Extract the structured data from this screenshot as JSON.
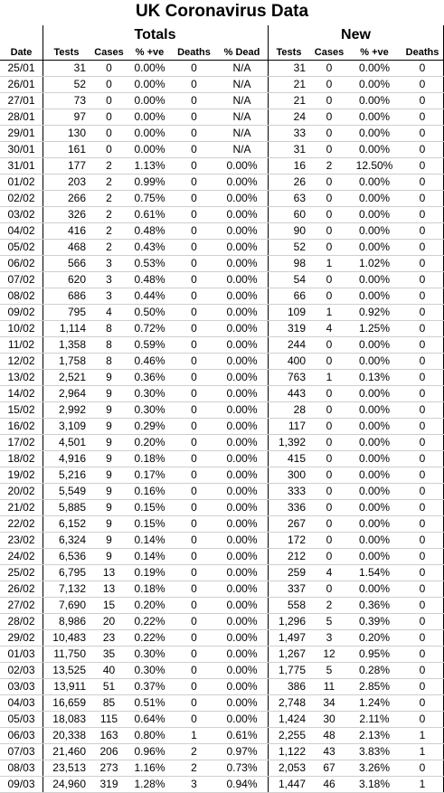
{
  "title": "UK Coronavirus Data",
  "groups": {
    "totals": "Totals",
    "new": "New"
  },
  "headers": [
    "Date",
    "Tests",
    "Cases",
    "% +ve",
    "Deaths",
    "% Dead",
    "Tests",
    "Cases",
    "% +ve",
    "Deaths"
  ],
  "rows": [
    [
      "25/01",
      "31",
      "0",
      "0.00%",
      "0",
      "N/A",
      "31",
      "0",
      "0.00%",
      "0"
    ],
    [
      "26/01",
      "52",
      "0",
      "0.00%",
      "0",
      "N/A",
      "21",
      "0",
      "0.00%",
      "0"
    ],
    [
      "27/01",
      "73",
      "0",
      "0.00%",
      "0",
      "N/A",
      "21",
      "0",
      "0.00%",
      "0"
    ],
    [
      "28/01",
      "97",
      "0",
      "0.00%",
      "0",
      "N/A",
      "24",
      "0",
      "0.00%",
      "0"
    ],
    [
      "29/01",
      "130",
      "0",
      "0.00%",
      "0",
      "N/A",
      "33",
      "0",
      "0.00%",
      "0"
    ],
    [
      "30/01",
      "161",
      "0",
      "0.00%",
      "0",
      "N/A",
      "31",
      "0",
      "0.00%",
      "0"
    ],
    [
      "31/01",
      "177",
      "2",
      "1.13%",
      "0",
      "0.00%",
      "16",
      "2",
      "12.50%",
      "0"
    ],
    [
      "01/02",
      "203",
      "2",
      "0.99%",
      "0",
      "0.00%",
      "26",
      "0",
      "0.00%",
      "0"
    ],
    [
      "02/02",
      "266",
      "2",
      "0.75%",
      "0",
      "0.00%",
      "63",
      "0",
      "0.00%",
      "0"
    ],
    [
      "03/02",
      "326",
      "2",
      "0.61%",
      "0",
      "0.00%",
      "60",
      "0",
      "0.00%",
      "0"
    ],
    [
      "04/02",
      "416",
      "2",
      "0.48%",
      "0",
      "0.00%",
      "90",
      "0",
      "0.00%",
      "0"
    ],
    [
      "05/02",
      "468",
      "2",
      "0.43%",
      "0",
      "0.00%",
      "52",
      "0",
      "0.00%",
      "0"
    ],
    [
      "06/02",
      "566",
      "3",
      "0.53%",
      "0",
      "0.00%",
      "98",
      "1",
      "1.02%",
      "0"
    ],
    [
      "07/02",
      "620",
      "3",
      "0.48%",
      "0",
      "0.00%",
      "54",
      "0",
      "0.00%",
      "0"
    ],
    [
      "08/02",
      "686",
      "3",
      "0.44%",
      "0",
      "0.00%",
      "66",
      "0",
      "0.00%",
      "0"
    ],
    [
      "09/02",
      "795",
      "4",
      "0.50%",
      "0",
      "0.00%",
      "109",
      "1",
      "0.92%",
      "0"
    ],
    [
      "10/02",
      "1,114",
      "8",
      "0.72%",
      "0",
      "0.00%",
      "319",
      "4",
      "1.25%",
      "0"
    ],
    [
      "11/02",
      "1,358",
      "8",
      "0.59%",
      "0",
      "0.00%",
      "244",
      "0",
      "0.00%",
      "0"
    ],
    [
      "12/02",
      "1,758",
      "8",
      "0.46%",
      "0",
      "0.00%",
      "400",
      "0",
      "0.00%",
      "0"
    ],
    [
      "13/02",
      "2,521",
      "9",
      "0.36%",
      "0",
      "0.00%",
      "763",
      "1",
      "0.13%",
      "0"
    ],
    [
      "14/02",
      "2,964",
      "9",
      "0.30%",
      "0",
      "0.00%",
      "443",
      "0",
      "0.00%",
      "0"
    ],
    [
      "15/02",
      "2,992",
      "9",
      "0.30%",
      "0",
      "0.00%",
      "28",
      "0",
      "0.00%",
      "0"
    ],
    [
      "16/02",
      "3,109",
      "9",
      "0.29%",
      "0",
      "0.00%",
      "117",
      "0",
      "0.00%",
      "0"
    ],
    [
      "17/02",
      "4,501",
      "9",
      "0.20%",
      "0",
      "0.00%",
      "1,392",
      "0",
      "0.00%",
      "0"
    ],
    [
      "18/02",
      "4,916",
      "9",
      "0.18%",
      "0",
      "0.00%",
      "415",
      "0",
      "0.00%",
      "0"
    ],
    [
      "19/02",
      "5,216",
      "9",
      "0.17%",
      "0",
      "0.00%",
      "300",
      "0",
      "0.00%",
      "0"
    ],
    [
      "20/02",
      "5,549",
      "9",
      "0.16%",
      "0",
      "0.00%",
      "333",
      "0",
      "0.00%",
      "0"
    ],
    [
      "21/02",
      "5,885",
      "9",
      "0.15%",
      "0",
      "0.00%",
      "336",
      "0",
      "0.00%",
      "0"
    ],
    [
      "22/02",
      "6,152",
      "9",
      "0.15%",
      "0",
      "0.00%",
      "267",
      "0",
      "0.00%",
      "0"
    ],
    [
      "23/02",
      "6,324",
      "9",
      "0.14%",
      "0",
      "0.00%",
      "172",
      "0",
      "0.00%",
      "0"
    ],
    [
      "24/02",
      "6,536",
      "9",
      "0.14%",
      "0",
      "0.00%",
      "212",
      "0",
      "0.00%",
      "0"
    ],
    [
      "25/02",
      "6,795",
      "13",
      "0.19%",
      "0",
      "0.00%",
      "259",
      "4",
      "1.54%",
      "0"
    ],
    [
      "26/02",
      "7,132",
      "13",
      "0.18%",
      "0",
      "0.00%",
      "337",
      "0",
      "0.00%",
      "0"
    ],
    [
      "27/02",
      "7,690",
      "15",
      "0.20%",
      "0",
      "0.00%",
      "558",
      "2",
      "0.36%",
      "0"
    ],
    [
      "28/02",
      "8,986",
      "20",
      "0.22%",
      "0",
      "0.00%",
      "1,296",
      "5",
      "0.39%",
      "0"
    ],
    [
      "29/02",
      "10,483",
      "23",
      "0.22%",
      "0",
      "0.00%",
      "1,497",
      "3",
      "0.20%",
      "0"
    ],
    [
      "01/03",
      "11,750",
      "35",
      "0.30%",
      "0",
      "0.00%",
      "1,267",
      "12",
      "0.95%",
      "0"
    ],
    [
      "02/03",
      "13,525",
      "40",
      "0.30%",
      "0",
      "0.00%",
      "1,775",
      "5",
      "0.28%",
      "0"
    ],
    [
      "03/03",
      "13,911",
      "51",
      "0.37%",
      "0",
      "0.00%",
      "386",
      "11",
      "2.85%",
      "0"
    ],
    [
      "04/03",
      "16,659",
      "85",
      "0.51%",
      "0",
      "0.00%",
      "2,748",
      "34",
      "1.24%",
      "0"
    ],
    [
      "05/03",
      "18,083",
      "115",
      "0.64%",
      "0",
      "0.00%",
      "1,424",
      "30",
      "2.11%",
      "0"
    ],
    [
      "06/03",
      "20,338",
      "163",
      "0.80%",
      "1",
      "0.61%",
      "2,255",
      "48",
      "2.13%",
      "1"
    ],
    [
      "07/03",
      "21,460",
      "206",
      "0.96%",
      "2",
      "0.97%",
      "1,122",
      "43",
      "3.83%",
      "1"
    ],
    [
      "08/03",
      "23,513",
      "273",
      "1.16%",
      "2",
      "0.73%",
      "2,053",
      "67",
      "3.26%",
      "0"
    ],
    [
      "09/03",
      "24,960",
      "319",
      "1.28%",
      "3",
      "0.94%",
      "1,447",
      "46",
      "3.18%",
      "1"
    ]
  ]
}
